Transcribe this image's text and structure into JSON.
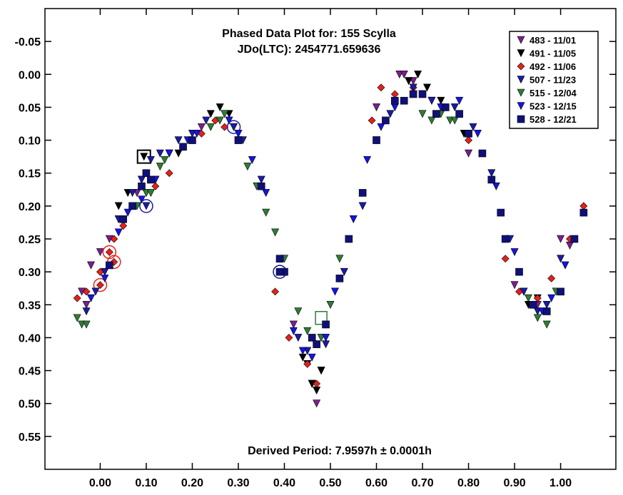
{
  "chart_data": {
    "type": "scatter",
    "title": "Phased Data Plot for: 155 Scylla",
    "subtitle": "JDo(LTC): 2454771.659636",
    "annotation": "Derived Period: 7.9597h ± 0.0001h",
    "xlabel": "",
    "ylabel": "",
    "xlim": [
      -0.12,
      1.12
    ],
    "ylim": [
      0.6,
      -0.1
    ],
    "y_reversed": true,
    "xticks": [
      "0.00",
      "0.10",
      "0.20",
      "0.30",
      "0.40",
      "0.50",
      "0.60",
      "0.70",
      "0.80",
      "0.90",
      "1.00"
    ],
    "xtick_values": [
      0,
      0.1,
      0.2,
      0.3,
      0.4,
      0.5,
      0.6,
      0.7,
      0.8,
      0.9,
      1.0
    ],
    "yticks": [
      "-0.05",
      "0.00",
      "0.05",
      "0.10",
      "0.15",
      "0.20",
      "0.25",
      "0.30",
      "0.35",
      "0.40",
      "0.45",
      "0.50",
      "0.55"
    ],
    "ytick_values": [
      -0.05,
      0,
      0.05,
      0.1,
      0.15,
      0.2,
      0.25,
      0.3,
      0.35,
      0.4,
      0.45,
      0.5,
      0.55
    ],
    "grid": false,
    "legend_position": "top-right",
    "series": [
      {
        "name": "483 - 11/01",
        "color": "#7b1f8f",
        "marker": "triangle-down",
        "x": [
          -0.04,
          -0.03,
          -0.02,
          0.0,
          0.02,
          0.04,
          0.08,
          0.15,
          0.22,
          0.3,
          0.42,
          0.46,
          0.47,
          0.47,
          0.48,
          0.6,
          0.65,
          0.66,
          0.67,
          0.68,
          0.72,
          0.8,
          0.9,
          0.95,
          1.0,
          1.02
        ],
        "y": [
          0.33,
          0.35,
          0.29,
          0.27,
          0.25,
          0.22,
          0.18,
          0.12,
          0.08,
          0.09,
          0.38,
          0.47,
          0.5,
          0.48,
          0.45,
          0.05,
          0.0,
          0.0,
          0.01,
          0.01,
          0.04,
          0.12,
          0.32,
          0.35,
          0.25,
          0.26
        ]
      },
      {
        "name": "491 - 11/05",
        "color": "#000000",
        "marker": "triangle-down",
        "x": [
          0.04,
          0.06,
          0.09,
          0.1,
          0.12,
          0.17,
          0.24,
          0.26,
          0.28,
          0.44,
          0.45,
          0.46,
          0.47,
          0.48,
          0.67,
          0.69,
          0.71,
          0.74,
          0.79,
          0.92,
          0.93,
          0.95
        ],
        "y": [
          0.2,
          0.18,
          0.16,
          0.12,
          0.16,
          0.12,
          0.06,
          0.05,
          0.06,
          0.43,
          0.44,
          0.47,
          0.48,
          0.45,
          0.01,
          0.0,
          0.02,
          0.04,
          0.09,
          0.33,
          0.35,
          0.34
        ],
        "special_x": [
          0.095
        ],
        "special_y": [
          0.125
        ]
      },
      {
        "name": "492 - 11/06",
        "color": "#e8201a",
        "marker": "diamond",
        "x": [
          -0.05,
          -0.03,
          0.0,
          0.03,
          0.05,
          0.07,
          0.12,
          0.15,
          0.18,
          0.22,
          0.25,
          0.27,
          0.38,
          0.41,
          0.45,
          0.47,
          0.59,
          0.61,
          0.64,
          0.68,
          0.75,
          0.8,
          0.88,
          0.91,
          0.95,
          0.98,
          1.02,
          1.05
        ],
        "y": [
          0.34,
          0.33,
          0.3,
          0.25,
          0.23,
          0.2,
          0.17,
          0.15,
          0.11,
          0.09,
          0.07,
          0.08,
          0.33,
          0.4,
          0.44,
          0.47,
          0.07,
          0.02,
          0.03,
          0.02,
          0.05,
          0.1,
          0.28,
          0.33,
          0.34,
          0.31,
          0.25,
          0.2
        ],
        "circled_x": [
          0.0,
          0.02,
          0.03
        ],
        "circled_y": [
          0.32,
          0.27,
          0.285
        ]
      },
      {
        "name": "507 - 11/23",
        "color": "#1a1aa8",
        "marker": "triangle-down",
        "x": [
          -0.03,
          -0.01,
          0.01,
          0.04,
          0.07,
          0.09,
          0.11,
          0.13,
          0.17,
          0.2,
          0.23,
          0.29,
          0.31,
          0.35,
          0.43,
          0.45,
          0.49,
          0.53,
          0.57,
          0.6,
          0.63,
          0.68,
          0.72,
          0.77,
          0.81,
          0.85,
          0.89,
          0.92,
          0.95,
          0.97,
          1.0
        ],
        "y": [
          0.36,
          0.33,
          0.3,
          0.22,
          0.18,
          0.16,
          0.13,
          0.12,
          0.1,
          0.09,
          0.07,
          0.08,
          0.1,
          0.16,
          0.4,
          0.42,
          0.41,
          0.3,
          0.2,
          0.1,
          0.06,
          0.02,
          0.04,
          0.05,
          0.08,
          0.15,
          0.25,
          0.33,
          0.36,
          0.35,
          0.28
        ],
        "circled_x": [
          0.1,
          0.29
        ],
        "circled_y": [
          0.2,
          0.08
        ]
      },
      {
        "name": "515 - 12/04",
        "color": "#2e7d32",
        "marker": "triangle-down",
        "x": [
          -0.05,
          -0.04,
          -0.03,
          0.08,
          0.1,
          0.11,
          0.13,
          0.14,
          0.24,
          0.26,
          0.27,
          0.3,
          0.32,
          0.34,
          0.36,
          0.38,
          0.4,
          0.43,
          0.45,
          0.47,
          0.48,
          0.49,
          0.5,
          0.52,
          0.7,
          0.72,
          0.74,
          0.76,
          0.77,
          0.93,
          0.95,
          0.97,
          0.99
        ],
        "y": [
          0.37,
          0.38,
          0.38,
          0.2,
          0.18,
          0.18,
          0.14,
          0.13,
          0.08,
          0.07,
          0.06,
          0.1,
          0.14,
          0.17,
          0.21,
          0.24,
          0.28,
          0.36,
          0.39,
          0.41,
          0.4,
          0.38,
          0.35,
          0.28,
          0.06,
          0.07,
          0.06,
          0.07,
          0.07,
          0.34,
          0.37,
          0.38,
          0.33
        ],
        "square_x": [
          0.48
        ],
        "square_y": [
          0.37
        ]
      },
      {
        "name": "523 - 12/15",
        "color": "#1414e6",
        "marker": "triangle-down",
        "x": [
          -0.02,
          0.01,
          0.04,
          0.06,
          0.09,
          0.12,
          0.15,
          0.19,
          0.21,
          0.28,
          0.3,
          0.33,
          0.36,
          0.42,
          0.44,
          0.46,
          0.49,
          0.51,
          0.55,
          0.58,
          0.61,
          0.64,
          0.7,
          0.74,
          0.78,
          0.82,
          0.86,
          0.9,
          0.94,
          0.96,
          0.98,
          1.01
        ],
        "y": [
          0.34,
          0.31,
          0.24,
          0.21,
          0.19,
          0.16,
          0.12,
          0.1,
          0.09,
          0.07,
          0.09,
          0.13,
          0.18,
          0.39,
          0.42,
          0.43,
          0.4,
          0.33,
          0.22,
          0.13,
          0.08,
          0.05,
          0.03,
          0.05,
          0.04,
          0.09,
          0.17,
          0.27,
          0.35,
          0.36,
          0.34,
          0.29
        ]
      },
      {
        "name": "528 - 12/21",
        "color": "#10107a",
        "marker": "square",
        "x": [
          0.02,
          0.05,
          0.07,
          0.09,
          0.1,
          0.11,
          0.18,
          0.2,
          0.3,
          0.35,
          0.39,
          0.4,
          0.46,
          0.47,
          0.49,
          0.52,
          0.54,
          0.57,
          0.6,
          0.62,
          0.64,
          0.66,
          0.68,
          0.7,
          0.73,
          0.75,
          0.78,
          0.8,
          0.83,
          0.85,
          0.87,
          0.88,
          0.91,
          0.94,
          0.97,
          1.0,
          1.03,
          1.05
        ],
        "y": [
          0.29,
          0.22,
          0.2,
          0.17,
          0.15,
          0.16,
          0.11,
          0.1,
          0.1,
          0.17,
          0.28,
          0.3,
          0.4,
          0.41,
          0.38,
          0.31,
          0.25,
          0.18,
          0.1,
          0.07,
          0.04,
          0.04,
          0.03,
          0.03,
          0.06,
          0.05,
          0.06,
          0.09,
          0.12,
          0.16,
          0.21,
          0.25,
          0.3,
          0.35,
          0.36,
          0.33,
          0.25,
          0.21
        ],
        "circled_x": [
          0.39
        ],
        "circled_y": [
          0.3
        ]
      }
    ]
  }
}
